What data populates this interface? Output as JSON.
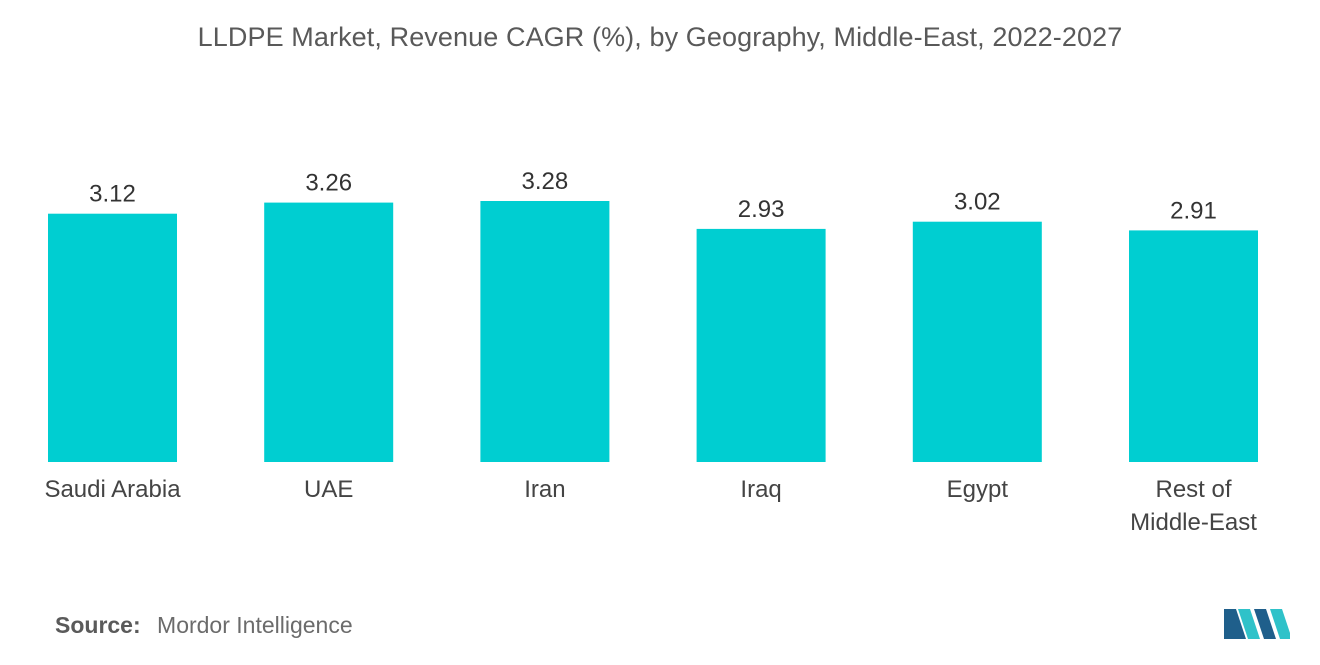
{
  "chart_data": {
    "type": "bar",
    "title": "LLDPE Market, Revenue CAGR (%), by Geography, Middle-East, 2022-2027",
    "categories": [
      "Saudi Arabia",
      "UAE",
      "Iran",
      "Iraq",
      "Egypt",
      "Rest of Middle-East"
    ],
    "category_lines": [
      [
        "Saudi Arabia"
      ],
      [
        "UAE"
      ],
      [
        "Iran"
      ],
      [
        "Iraq"
      ],
      [
        "Egypt"
      ],
      [
        "Rest of",
        "Middle-East"
      ]
    ],
    "values": [
      3.12,
      3.26,
      3.28,
      2.93,
      3.02,
      2.91
    ],
    "value_labels": [
      "3.12",
      "3.26",
      "3.28",
      "2.93",
      "3.02",
      "2.91"
    ],
    "xlabel": "",
    "ylabel": "",
    "ylim": [
      0,
      3.28
    ],
    "grid": false,
    "legend": "none",
    "bar_color": "#00CED1"
  },
  "source": {
    "label": "Source:",
    "text": "Mordor Intelligence"
  },
  "colors": {
    "bar": "#00CED1",
    "logo_dark": "#1F5F8B",
    "logo_light": "#2FC2C9"
  }
}
